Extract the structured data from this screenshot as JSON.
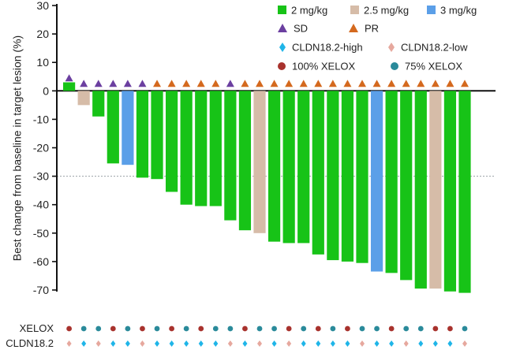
{
  "chart_data": {
    "type": "bar",
    "ylabel": "Best change from baseline in target lesion (%)",
    "xlabel": "",
    "ylim": [
      -70,
      30
    ],
    "yticks": [
      30,
      20,
      10,
      0,
      -10,
      -20,
      -30,
      -40,
      -50,
      -60,
      -70
    ],
    "reference_line": -30,
    "values": [
      3,
      -5,
      -9,
      -25.5,
      -26,
      -30.5,
      -31,
      -35.5,
      -40,
      -40.5,
      -40.5,
      -45.5,
      -49,
      -50,
      -53,
      -53.5,
      -53.5,
      -57.5,
      -59.5,
      -60,
      -60.5,
      -63.5,
      -64,
      -66.5,
      -69.5,
      -69.5,
      -70.5,
      -71
    ],
    "dose": [
      "2 mg/kg",
      "2.5 mg/kg",
      "2 mg/kg",
      "2 mg/kg",
      "3 mg/kg",
      "2 mg/kg",
      "2 mg/kg",
      "2 mg/kg",
      "2 mg/kg",
      "2 mg/kg",
      "2 mg/kg",
      "2 mg/kg",
      "2 mg/kg",
      "2.5 mg/kg",
      "2 mg/kg",
      "2 mg/kg",
      "2 mg/kg",
      "2 mg/kg",
      "2 mg/kg",
      "2 mg/kg",
      "2 mg/kg",
      "3 mg/kg",
      "2 mg/kg",
      "2 mg/kg",
      "2 mg/kg",
      "2.5 mg/kg",
      "2 mg/kg",
      "2 mg/kg"
    ],
    "response": [
      "SD",
      "SD",
      "SD",
      "SD",
      "SD",
      "SD",
      "PR",
      "PR",
      "PR",
      "PR",
      "PR",
      "SD",
      "PR",
      "PR",
      "PR",
      "PR",
      "PR",
      "PR",
      "PR",
      "PR",
      "PR",
      "PR",
      "PR",
      "PR",
      "PR",
      "PR",
      "PR",
      "PR"
    ],
    "xelox": [
      "100%",
      "75%",
      "75%",
      "100%",
      "75%",
      "100%",
      "75%",
      "100%",
      "75%",
      "100%",
      "75%",
      "75%",
      "100%",
      "75%",
      "75%",
      "100%",
      "75%",
      "100%",
      "75%",
      "100%",
      "75%",
      "75%",
      "100%",
      "75%",
      "75%",
      "100%",
      "100%",
      "75%"
    ],
    "cldn": [
      "low",
      "high",
      "low",
      "high",
      "high",
      "low",
      "high",
      "high",
      "high",
      "high",
      "high",
      "low",
      "high",
      "low",
      "high",
      "low",
      "high",
      "high",
      "high",
      "high",
      "low",
      "high",
      "high",
      "low",
      "high",
      "high",
      "high",
      "low"
    ],
    "legend": {
      "dose": [
        {
          "label": "2 mg/kg",
          "color": "#17c317"
        },
        {
          "label": "2.5 mg/kg",
          "color": "#d6bca8"
        },
        {
          "label": "3 mg/kg",
          "color": "#5b9fe8"
        }
      ],
      "response": [
        {
          "label": "SD",
          "color": "#6b3fa0",
          "shape": "triangle"
        },
        {
          "label": "PR",
          "color": "#d4691e",
          "shape": "triangle"
        }
      ],
      "cldn": [
        {
          "label": "CLDN18.2-high",
          "color": "#1fb5e8",
          "shape": "diamond"
        },
        {
          "label": "CLDN18.2-low",
          "color": "#e6a89e",
          "shape": "diamond"
        }
      ],
      "xelox": [
        {
          "label": "100% XELOX",
          "color": "#a8322d",
          "shape": "circle"
        },
        {
          "label": "75% XELOX",
          "color": "#2a8a9a",
          "shape": "circle"
        }
      ]
    },
    "row_labels": {
      "xelox": "XELOX",
      "cldn": "CLDN18.2"
    },
    "colors": {
      "2 mg/kg": "#17c317",
      "2.5 mg/kg": "#d6bca8",
      "3 mg/kg": "#5b9fe8",
      "SD": "#6b3fa0",
      "PR": "#d4691e",
      "100%": "#a8322d",
      "75%": "#2a8a9a",
      "high": "#1fb5e8",
      "low": "#e6a89e"
    }
  }
}
